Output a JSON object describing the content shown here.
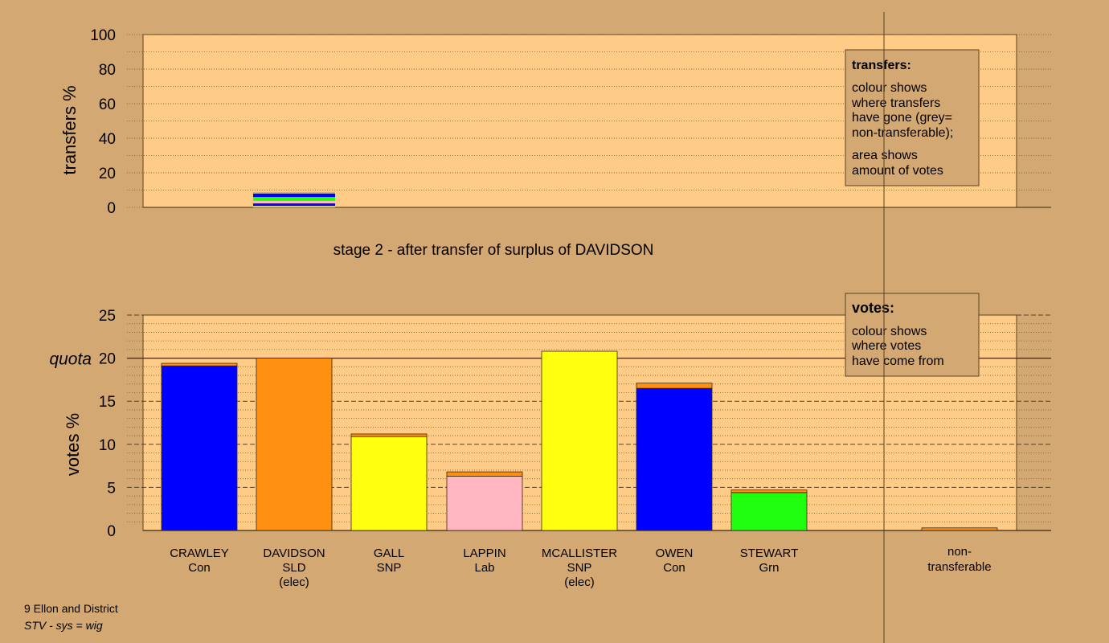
{
  "colors": {
    "page_bg": "#d4a872",
    "plot_bg": "#ffcc88",
    "Con": "#0000ff",
    "SLD": "#ff9010",
    "SNP": "#ffff10",
    "Lab": "#ffb6c1",
    "Grn": "#20ff10",
    "nontransferable": "#aaaaaa"
  },
  "stage_title": "stage 2 - after transfer of surplus of DAVIDSON",
  "footer": {
    "line1": "9 Ellon and District",
    "line2": "STV - sys = wig"
  },
  "legend_transfers": {
    "title": "transfers:",
    "lines": [
      "colour shows",
      "where transfers",
      "have gone (grey=",
      "non-transferable);",
      "area shows",
      "amount of votes"
    ]
  },
  "legend_votes": {
    "title": "votes:",
    "lines": [
      "colour shows",
      "where votes",
      "have come from"
    ]
  },
  "chart_data": [
    {
      "type": "bar",
      "name": "transfers",
      "ylabel": "transfers %",
      "ylim": [
        0,
        100
      ],
      "yticks": [
        0,
        20,
        40,
        60,
        80,
        100
      ],
      "grid": true,
      "categories": [
        "CRAWLEY",
        "DAVIDSON",
        "GALL",
        "LAPPIN",
        "MCALLISTER",
        "OWEN",
        "STEWART",
        "non-transferable"
      ],
      "bars": [
        {
          "category": "DAVIDSON",
          "segments": [
            {
              "party": "SNP",
              "value": 0.8
            },
            {
              "party": "Con",
              "value": 1.5
            },
            {
              "party": "Lab",
              "value": 1.5
            },
            {
              "party": "Grn",
              "value": 2.2
            },
            {
              "party": "Con",
              "value": 2.0
            },
            {
              "party": "nontransferable",
              "value": 0.7
            }
          ]
        }
      ]
    },
    {
      "type": "bar",
      "name": "votes",
      "ylabel": "votes %",
      "ylim": [
        0,
        25
      ],
      "yticks": [
        0,
        5,
        10,
        15,
        20,
        25
      ],
      "quota": 20,
      "quota_label": "quota",
      "grid": true,
      "categories": [
        {
          "name": "CRAWLEY",
          "party": "Con",
          "note": ""
        },
        {
          "name": "DAVIDSON",
          "party": "SLD",
          "note": "(elec)"
        },
        {
          "name": "GALL",
          "party": "SNP",
          "note": ""
        },
        {
          "name": "LAPPIN",
          "party": "Lab",
          "note": ""
        },
        {
          "name": "MCALLISTER",
          "party": "SNP",
          "note": "(elec)"
        },
        {
          "name": "OWEN",
          "party": "Con",
          "note": ""
        },
        {
          "name": "STEWART",
          "party": "Grn",
          "note": ""
        }
      ],
      "nontransferable_label": [
        "non-",
        "transferable"
      ],
      "bars": [
        {
          "category": "CRAWLEY",
          "segments": [
            {
              "party": "Con",
              "value": 19.1
            },
            {
              "party": "SLD",
              "value": 0.3
            }
          ]
        },
        {
          "category": "DAVIDSON",
          "segments": [
            {
              "party": "SLD",
              "value": 20.0
            }
          ]
        },
        {
          "category": "GALL",
          "segments": [
            {
              "party": "SNP",
              "value": 10.9
            },
            {
              "party": "SLD",
              "value": 0.3
            }
          ]
        },
        {
          "category": "LAPPIN",
          "segments": [
            {
              "party": "Lab",
              "value": 6.3
            },
            {
              "party": "SLD",
              "value": 0.5
            }
          ]
        },
        {
          "category": "MCALLISTER",
          "segments": [
            {
              "party": "SNP",
              "value": 20.8
            }
          ]
        },
        {
          "category": "OWEN",
          "segments": [
            {
              "party": "Con",
              "value": 16.5
            },
            {
              "party": "SLD",
              "value": 0.6
            }
          ]
        },
        {
          "category": "STEWART",
          "segments": [
            {
              "party": "Grn",
              "value": 4.4
            },
            {
              "party": "SLD",
              "value": 0.3
            }
          ]
        },
        {
          "category": "non-transferable",
          "segments": [
            {
              "party": "SLD",
              "value": 0.3
            }
          ]
        }
      ]
    }
  ]
}
